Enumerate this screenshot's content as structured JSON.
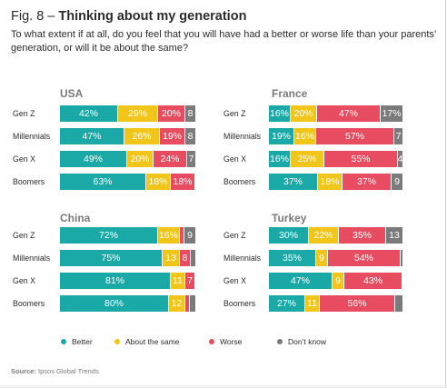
{
  "title": {
    "number": "Fig. 8 –",
    "text": "Thinking about my generation"
  },
  "subtitle": "To what extent if at all, do you feel that you will have had a better or worse life than your parents’ generation, or will it be about the same?",
  "colors": {
    "better": "#1aa9a7",
    "same": "#f2c51a",
    "worse": "#e84c60",
    "dont_know": "#7b7b7b"
  },
  "legend": [
    {
      "label": "Better",
      "color_key": "better"
    },
    {
      "label": "About the same",
      "color_key": "same"
    },
    {
      "label": "Worse",
      "color_key": "worse"
    },
    {
      "label": "Don’t know",
      "color_key": "dont_know"
    }
  ],
  "source": {
    "label": "Source:",
    "text": "Ipsos Global Trends"
  },
  "chart_data": {
    "type": "bar",
    "stacked": true,
    "orientation": "horizontal",
    "xlim": [
      0,
      100
    ],
    "series_keys": [
      "better",
      "same",
      "worse",
      "dont_know"
    ],
    "panels": [
      {
        "title": "USA",
        "rows": [
          {
            "label": "Gen Z",
            "values": [
              42,
              29,
              20,
              8
            ],
            "labels": [
              "42%",
              "29%",
              "20%",
              "8"
            ]
          },
          {
            "label": "Millennials",
            "values": [
              47,
              26,
              19,
              8
            ],
            "labels": [
              "47%",
              "26%",
              "19%",
              "8"
            ]
          },
          {
            "label": "Gen X",
            "values": [
              49,
              20,
              24,
              7
            ],
            "labels": [
              "49%",
              "20%",
              "24%",
              "7"
            ]
          },
          {
            "label": "Boomers",
            "values": [
              63,
              18,
              18,
              1
            ],
            "labels": [
              "63%",
              "18%",
              "18%",
              ""
            ]
          }
        ]
      },
      {
        "title": "France",
        "rows": [
          {
            "label": "Gen Z",
            "values": [
              16,
              20,
              47,
              17
            ],
            "labels": [
              "16%",
              "20%",
              "47%",
              "17%"
            ]
          },
          {
            "label": "Millennials",
            "values": [
              19,
              16,
              57,
              7
            ],
            "labels": [
              "19%",
              "16%",
              "57%",
              "7"
            ]
          },
          {
            "label": "Gen X",
            "values": [
              16,
              25,
              55,
              4
            ],
            "labels": [
              "16%",
              "25%",
              "55%",
              "4"
            ]
          },
          {
            "label": "Boomers",
            "values": [
              37,
              18,
              37,
              9
            ],
            "labels": [
              "37%",
              "18%",
              "37%",
              "9"
            ]
          }
        ]
      },
      {
        "title": "China",
        "rows": [
          {
            "label": "Gen Z",
            "values": [
              72,
              16,
              3,
              9
            ],
            "labels": [
              "72%",
              "16%",
              "",
              "9"
            ]
          },
          {
            "label": "Millennials",
            "values": [
              75,
              13,
              8,
              4
            ],
            "labels": [
              "75%",
              "13",
              "8",
              ""
            ]
          },
          {
            "label": "Gen X",
            "values": [
              81,
              11,
              7,
              1
            ],
            "labels": [
              "81%",
              "11",
              "7",
              ""
            ]
          },
          {
            "label": "Boomers",
            "values": [
              80,
              12,
              3,
              5
            ],
            "labels": [
              "80%",
              "12",
              "",
              ""
            ]
          }
        ]
      },
      {
        "title": "Turkey",
        "rows": [
          {
            "label": "Gen Z",
            "values": [
              30,
              22,
              35,
              13
            ],
            "labels": [
              "30%",
              "22%",
              "35%",
              "13"
            ]
          },
          {
            "label": "Millennials",
            "values": [
              35,
              9,
              54,
              2
            ],
            "labels": [
              "35%",
              "9",
              "54%",
              ""
            ]
          },
          {
            "label": "Gen X",
            "values": [
              47,
              9,
              43,
              1
            ],
            "labels": [
              "47%",
              "9",
              "43%",
              ""
            ]
          },
          {
            "label": "Boomers",
            "values": [
              27,
              11,
              56,
              6
            ],
            "labels": [
              "27%",
              "11",
              "56%",
              ""
            ]
          }
        ]
      }
    ]
  }
}
